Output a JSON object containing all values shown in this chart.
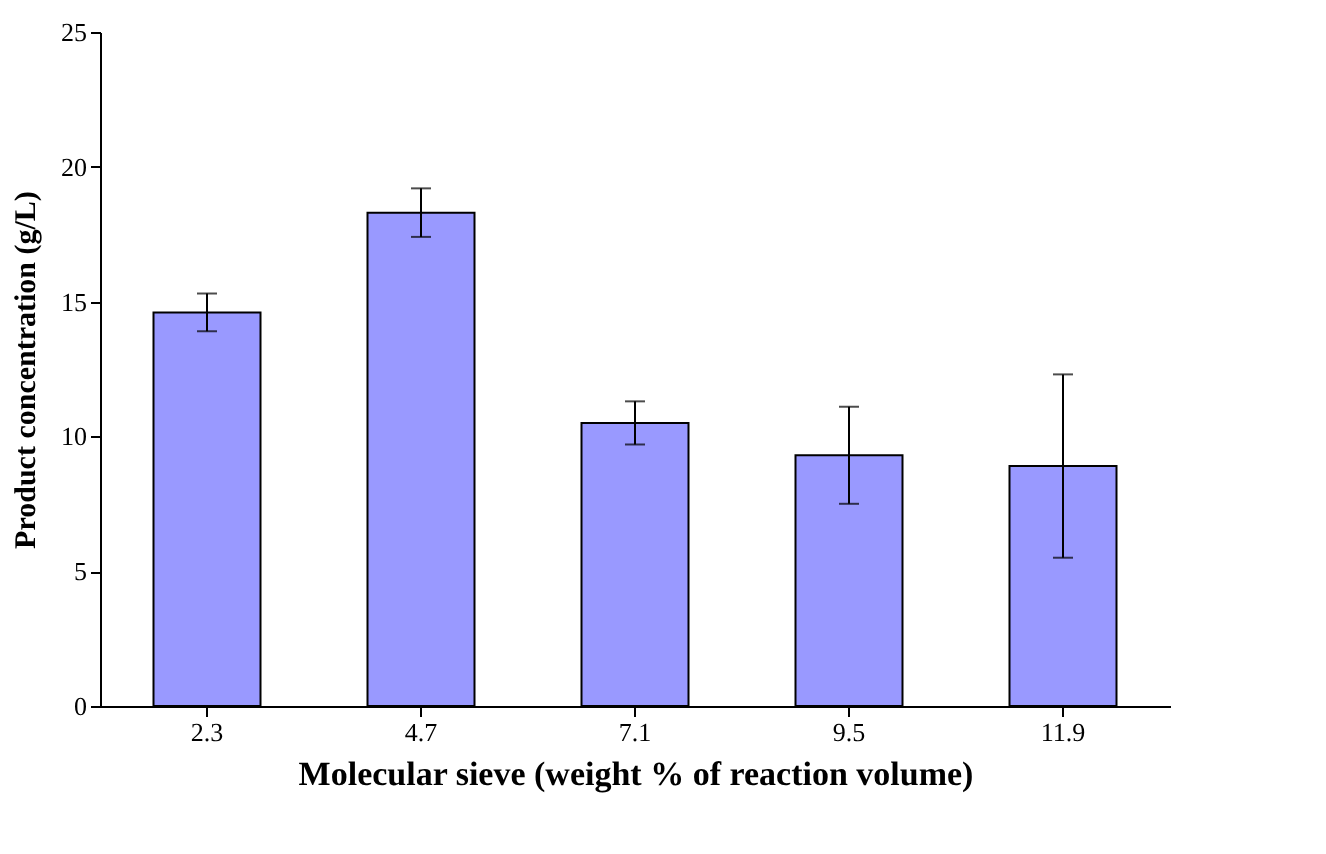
{
  "chart_data": {
    "type": "bar",
    "xlabel": "Molecular sieve (weight % of reaction volume)",
    "ylabel": "Product concentration (g/L)",
    "categories": [
      "2.3",
      "4.7",
      "7.1",
      "9.5",
      "11.9"
    ],
    "values": [
      14.6,
      18.3,
      10.5,
      9.3,
      8.9
    ],
    "errors": [
      0.7,
      0.9,
      0.8,
      1.8,
      3.4
    ],
    "color": "#9999ff",
    "ylim": [
      0,
      25
    ],
    "yticks": [
      0,
      5,
      10,
      15,
      20,
      25
    ],
    "grid": false
  }
}
